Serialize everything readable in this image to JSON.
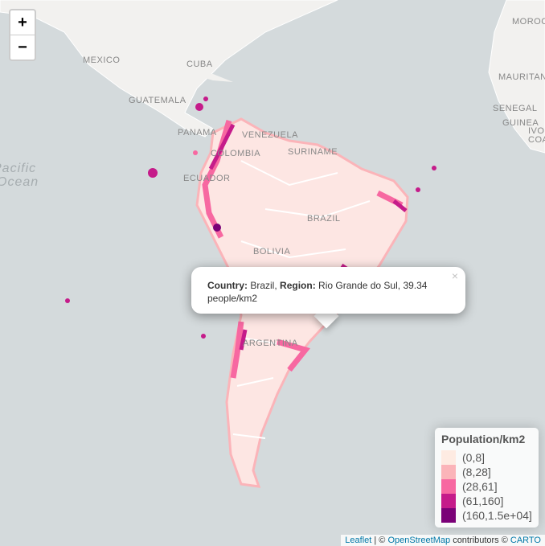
{
  "zoom": {
    "in": "+",
    "out": "−"
  },
  "map_labels": [
    "MEXICO",
    "CUBA",
    "GUATEMALA",
    "PANAMA",
    "VENEZUELA",
    "COLOMBIA",
    "SURINAME",
    "ECUADOR",
    "BRAZIL",
    "BOLIVIA",
    "ARGENTINA",
    "MOROCCO",
    "MAURITANIA",
    "SENEGAL",
    "GUINEA",
    "IVO",
    "COA",
    "Pacific",
    "Ocean"
  ],
  "popup": {
    "close": "×",
    "country_label": "Country:",
    "country": "Brazil,",
    "region_label": "Region:",
    "region": "Rio Grande do Sul, 39.34 people/km2"
  },
  "legend": {
    "title": "Population/km2",
    "items": [
      {
        "label": "(0,8]",
        "color": "#feebe2"
      },
      {
        "label": "(8,28]",
        "color": "#fbb4b9"
      },
      {
        "label": "(28,61]",
        "color": "#f768a1"
      },
      {
        "label": "(61,160]",
        "color": "#c51b8a"
      },
      {
        "label": "(160,1.5e+04]",
        "color": "#7a0177"
      }
    ]
  },
  "attribution": {
    "leaflet": "Leaflet",
    "sep": "| ©",
    "osm": "OpenStreetMap",
    "contrib": "contributors ©",
    "carto": "CARTO"
  }
}
